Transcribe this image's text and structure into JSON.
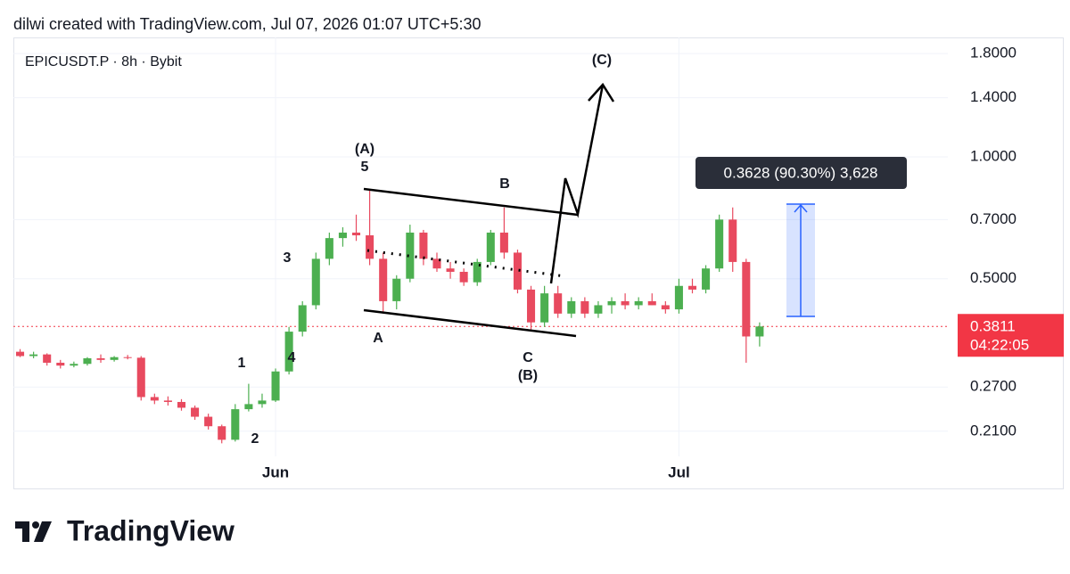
{
  "header": "dilwi created with TradingView.com, Jul 07, 2026 01:07 UTC+5:30",
  "branding": "TradingView",
  "chart_data": {
    "type": "candlestick",
    "title": "EPICUSDT.P · 8h · Bybit",
    "up_color": "#4caf50",
    "down_color": "#e84a5f",
    "log_scale": true,
    "grid": true,
    "x": [
      0,
      1,
      2,
      3,
      4,
      5,
      6,
      7,
      8,
      9,
      10,
      11,
      12,
      13,
      14,
      15,
      16,
      17,
      18,
      19,
      20,
      21,
      22,
      23,
      24,
      25,
      26,
      27,
      28,
      29,
      30,
      31,
      32,
      33,
      34,
      35,
      36,
      37,
      38,
      39,
      40,
      41,
      42,
      43,
      44,
      45,
      46,
      47,
      48,
      49,
      50,
      51,
      52,
      53,
      54,
      55
    ],
    "open": [
      0.33,
      0.322,
      0.325,
      0.31,
      0.305,
      0.308,
      0.318,
      0.315,
      0.32,
      0.319,
      0.255,
      0.25,
      0.248,
      0.24,
      0.228,
      0.216,
      0.2,
      0.238,
      0.245,
      0.25,
      0.295,
      0.37,
      0.43,
      0.56,
      0.63,
      0.65,
      0.64,
      0.56,
      0.44,
      0.5,
      0.65,
      0.56,
      0.53,
      0.52,
      0.49,
      0.55,
      0.65,
      0.58,
      0.47,
      0.39,
      0.46,
      0.41,
      0.44,
      0.41,
      0.43,
      0.44,
      0.43,
      0.44,
      0.43,
      0.42,
      0.48,
      0.47,
      0.53,
      0.7,
      0.55,
      0.36
    ],
    "high": [
      0.335,
      0.33,
      0.327,
      0.315,
      0.312,
      0.32,
      0.325,
      0.322,
      0.324,
      0.322,
      0.26,
      0.256,
      0.252,
      0.243,
      0.232,
      0.218,
      0.245,
      0.275,
      0.26,
      0.3,
      0.38,
      0.44,
      0.58,
      0.65,
      0.67,
      0.72,
      0.83,
      0.58,
      0.51,
      0.68,
      0.66,
      0.58,
      0.55,
      0.53,
      0.56,
      0.66,
      0.75,
      0.59,
      0.48,
      0.48,
      0.48,
      0.45,
      0.45,
      0.44,
      0.45,
      0.46,
      0.45,
      0.46,
      0.44,
      0.5,
      0.5,
      0.54,
      0.72,
      0.75,
      0.56,
      0.39
    ],
    "low": [
      0.32,
      0.318,
      0.305,
      0.3,
      0.302,
      0.305,
      0.31,
      0.312,
      0.316,
      0.25,
      0.245,
      0.243,
      0.236,
      0.224,
      0.212,
      0.196,
      0.198,
      0.235,
      0.24,
      0.248,
      0.29,
      0.36,
      0.42,
      0.54,
      0.6,
      0.62,
      0.54,
      0.41,
      0.42,
      0.49,
      0.54,
      0.52,
      0.5,
      0.48,
      0.48,
      0.54,
      0.56,
      0.46,
      0.37,
      0.38,
      0.4,
      0.4,
      0.4,
      0.4,
      0.41,
      0.42,
      0.42,
      0.43,
      0.41,
      0.41,
      0.46,
      0.46,
      0.52,
      0.52,
      0.31,
      0.34
    ],
    "close": [
      0.322,
      0.325,
      0.31,
      0.305,
      0.308,
      0.318,
      0.315,
      0.32,
      0.319,
      0.255,
      0.25,
      0.248,
      0.24,
      0.228,
      0.216,
      0.2,
      0.238,
      0.245,
      0.25,
      0.295,
      0.37,
      0.43,
      0.56,
      0.63,
      0.65,
      0.64,
      0.56,
      0.44,
      0.5,
      0.65,
      0.56,
      0.53,
      0.52,
      0.49,
      0.55,
      0.65,
      0.58,
      0.47,
      0.39,
      0.46,
      0.41,
      0.44,
      0.41,
      0.43,
      0.44,
      0.43,
      0.44,
      0.43,
      0.42,
      0.48,
      0.47,
      0.53,
      0.7,
      0.55,
      0.36,
      0.3811
    ],
    "xlim": [
      -0.5,
      69
    ],
    "xticks": [
      {
        "value": 19,
        "label": "Jun"
      },
      {
        "value": 49,
        "label": "Jul"
      }
    ],
    "ylim": [
      0.182,
      1.973
    ],
    "yticks": [
      {
        "value": 0.21,
        "label": "0.2100"
      },
      {
        "value": 0.27,
        "label": "0.2700"
      },
      {
        "value": 0.5,
        "label": "0.5000"
      },
      {
        "value": 0.7,
        "label": "0.7000"
      },
      {
        "value": 1,
        "label": "1.0000"
      },
      {
        "value": 1.4,
        "label": "1.4000"
      },
      {
        "value": 1.8,
        "label": "1.8000"
      }
    ],
    "last_price": 0.3811,
    "countdown": "04:22:05",
    "measure_label": "0.3628 (90.30%) 3,628",
    "annotations": [
      "(A)",
      "5",
      "3",
      "1",
      "4",
      "2",
      "A",
      "B",
      "C",
      "(B)",
      "(C)"
    ]
  }
}
